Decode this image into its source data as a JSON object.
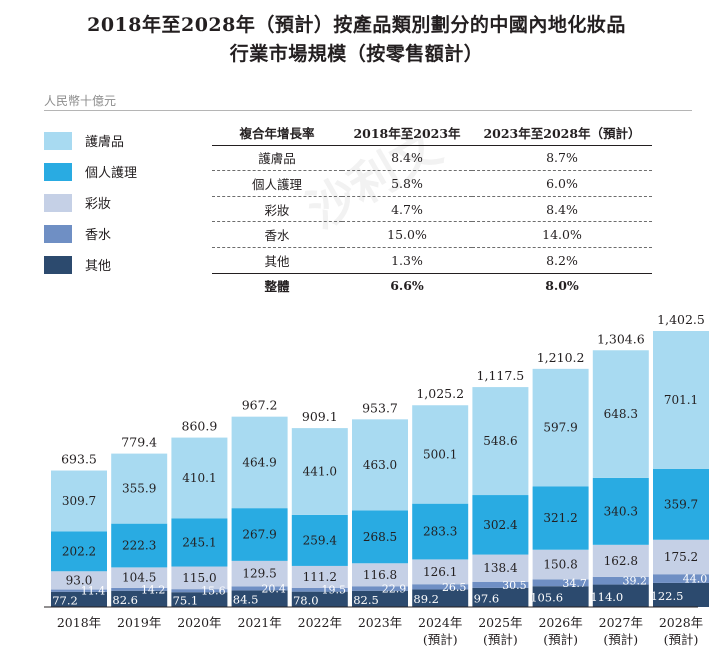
{
  "title_line1": "2018年至2028年（預計）按產品類別劃分的中國內地化妝品",
  "title_line2": "行業市場規模（按零售額計）",
  "unit": "人民幣十億元",
  "cagr_table": {
    "headers": [
      "複合年增長率",
      "2018年至2023年",
      "2023年至2028年（預計）"
    ],
    "rows": [
      [
        "護膚品",
        "8.4%",
        "8.7%"
      ],
      [
        "個人護理",
        "5.8%",
        "6.0%"
      ],
      [
        "彩妝",
        "4.7%",
        "8.4%"
      ],
      [
        "香水",
        "15.0%",
        "14.0%"
      ],
      [
        "其他",
        "1.3%",
        "8.2%"
      ]
    ],
    "total": [
      "整體",
      "6.6%",
      "8.0%"
    ]
  },
  "chart_data": {
    "type": "bar",
    "stacked": true,
    "categories": [
      "2018年",
      "2019年",
      "2020年",
      "2021年",
      "2022年",
      "2023年",
      "2024年",
      "2025年",
      "2026年",
      "2027年",
      "2028年"
    ],
    "category_sublabels": [
      "",
      "",
      "",
      "",
      "",
      "",
      "(預計)",
      "(預計)",
      "(預計)",
      "(預計)",
      "(預計)"
    ],
    "series": [
      {
        "name": "其他",
        "color": "#2c4a6e",
        "values": [
          77.2,
          82.6,
          75.1,
          84.5,
          78.0,
          82.5,
          89.2,
          97.6,
          105.6,
          114.0,
          122.5
        ]
      },
      {
        "name": "香水",
        "color": "#6f8fc4",
        "values": [
          11.4,
          14.2,
          15.6,
          20.4,
          19.5,
          22.9,
          26.5,
          30.5,
          34.7,
          39.2,
          44.0
        ]
      },
      {
        "name": "彩妝",
        "color": "#c5d0e6",
        "values": [
          93.0,
          104.5,
          115.0,
          129.5,
          111.2,
          116.8,
          126.1,
          138.4,
          150.8,
          162.8,
          175.2
        ]
      },
      {
        "name": "個人護理",
        "color": "#29abe2",
        "values": [
          202.2,
          222.3,
          245.1,
          267.9,
          259.4,
          268.5,
          283.3,
          302.4,
          321.2,
          340.3,
          359.7
        ]
      },
      {
        "name": "護膚品",
        "color": "#a8daf1",
        "values": [
          309.7,
          355.9,
          410.1,
          464.9,
          441.0,
          463.0,
          500.1,
          548.6,
          597.9,
          648.3,
          701.1
        ]
      }
    ],
    "totals": [
      "693.5",
      "779.4",
      "860.9",
      "967.2",
      "909.1",
      "953.7",
      "1,025.2",
      "1,117.5",
      "1,210.2",
      "1,304.6",
      "1,402.5"
    ],
    "ylim": [
      0,
      1402.5
    ]
  },
  "watermark_text": "沙利文"
}
